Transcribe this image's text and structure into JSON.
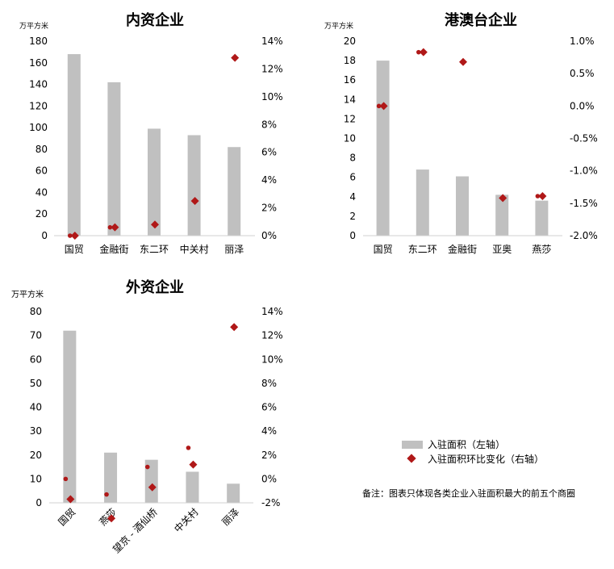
{
  "legend": {
    "area": "入驻面积（左轴）",
    "change": "入驻面积环比变化（右轴）"
  },
  "note": "备注：图表只体现各类企业入驻面积最大的前五个商圈",
  "colors": {
    "bar": "#c0c0c0",
    "marker": "#b01818"
  },
  "chart_data": [
    {
      "type": "bar",
      "title": "内资企业",
      "unit_label": "万平方米",
      "categories": [
        "国贸",
        "金融街",
        "东二环",
        "中关村",
        "丽泽"
      ],
      "series": [
        {
          "axis": "left",
          "kind": "bar",
          "values": [
            168,
            142,
            99,
            93,
            82
          ]
        },
        {
          "axis": "right",
          "kind": "diamond",
          "values": [
            0.0,
            0.6,
            0.8,
            2.5,
            12.8
          ]
        },
        {
          "axis": "right",
          "kind": "dot",
          "values": [
            0.0,
            0.6,
            null,
            null,
            null
          ]
        }
      ],
      "left_ticks": [
        "0",
        "20",
        "40",
        "60",
        "80",
        "100",
        "120",
        "140",
        "160",
        "180"
      ],
      "left_ylim": [
        0,
        180
      ],
      "right_ticks": [
        "0%",
        "2%",
        "4%",
        "6%",
        "8%",
        "10%",
        "12%",
        "14%"
      ],
      "right_ylim": [
        0,
        14
      ],
      "grid": false
    },
    {
      "type": "bar",
      "title": "港澳台企业",
      "unit_label": "万平方米",
      "categories": [
        "国贸",
        "东二环",
        "金融街",
        "亚奥",
        "燕莎"
      ],
      "series": [
        {
          "axis": "left",
          "kind": "bar",
          "values": [
            18,
            6.8,
            6.1,
            4.2,
            3.6
          ]
        },
        {
          "axis": "right",
          "kind": "diamond",
          "values": [
            0.0,
            0.83,
            0.68,
            -1.42,
            -1.39
          ]
        },
        {
          "axis": "right",
          "kind": "dot",
          "values": [
            0.0,
            0.83,
            null,
            null,
            -1.39
          ]
        }
      ],
      "left_ticks": [
        "0",
        "2",
        "4",
        "6",
        "8",
        "10",
        "12",
        "14",
        "16",
        "18",
        "20"
      ],
      "left_ylim": [
        0,
        20
      ],
      "right_ticks": [
        "-2.0%",
        "-1.5%",
        "-1.0%",
        "-0.5%",
        "0.0%",
        "0.5%",
        "1.0%"
      ],
      "right_ylim": [
        -2.0,
        1.0
      ],
      "grid": false
    },
    {
      "type": "bar",
      "title": "外资企业",
      "unit_label": "万平方米",
      "categories": [
        "国贸",
        "燕莎",
        "望京 - 酒仙桥",
        "中关村",
        "丽泽"
      ],
      "series": [
        {
          "axis": "left",
          "kind": "bar",
          "values": [
            72,
            21,
            18,
            13,
            8
          ]
        },
        {
          "axis": "right",
          "kind": "diamond",
          "values": [
            -1.7,
            -3.3,
            -0.7,
            1.2,
            12.7
          ]
        },
        {
          "axis": "right",
          "kind": "dot",
          "values": [
            0.0,
            -1.3,
            1.0,
            2.6,
            null
          ]
        }
      ],
      "left_ticks": [
        "0",
        "10",
        "20",
        "30",
        "40",
        "50",
        "60",
        "70",
        "80"
      ],
      "left_ylim": [
        0,
        80
      ],
      "right_ticks": [
        "-2%",
        "0%",
        "2%",
        "4%",
        "6%",
        "8%",
        "10%",
        "12%",
        "14%"
      ],
      "right_ylim": [
        -2,
        14
      ],
      "grid": false
    }
  ]
}
